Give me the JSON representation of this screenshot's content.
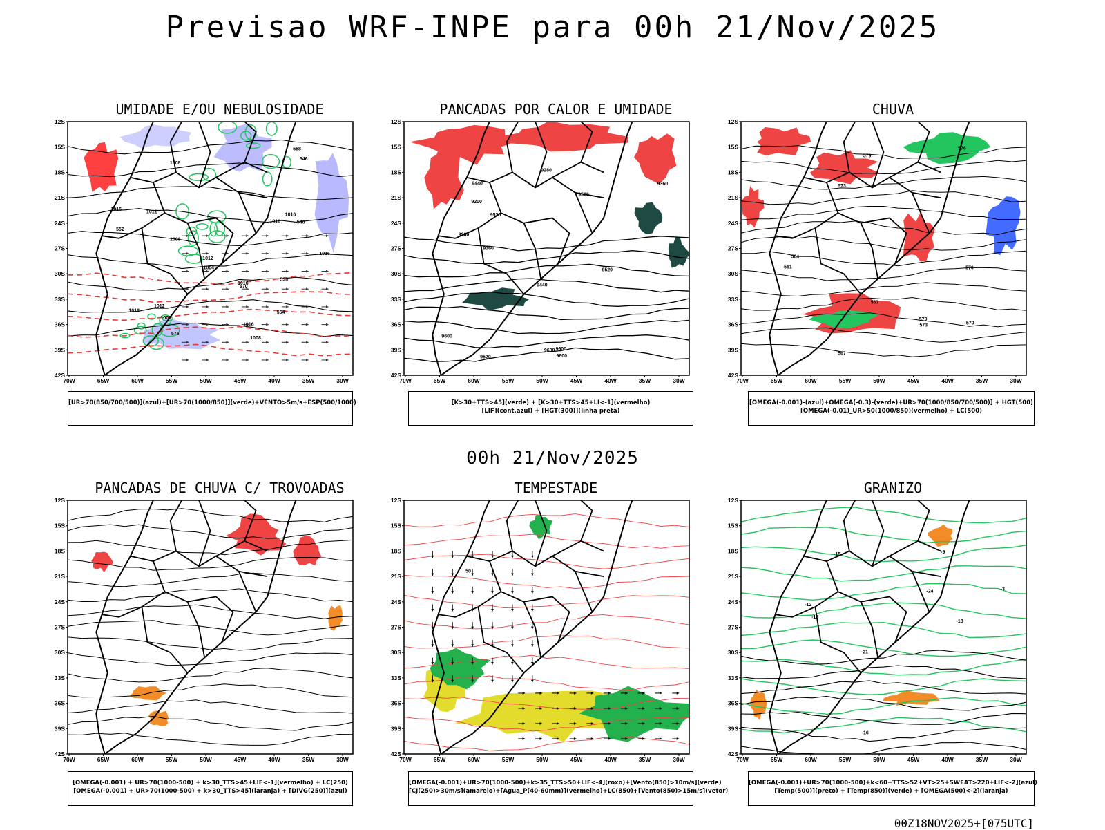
{
  "main_title": "Previsao WRF-INPE  para 00h 21/Nov/2025",
  "mid_title": "00h 21/Nov/2025",
  "footer": "00Z18NOV2025+[075UTC]",
  "lat_labels": [
    "12S",
    "15S",
    "18S",
    "21S",
    "24S",
    "27S",
    "30S",
    "33S",
    "36S",
    "39S",
    "42S"
  ],
  "lon_labels": [
    "70W",
    "65W",
    "60W",
    "55W",
    "50W",
    "45W",
    "40W",
    "35W",
    "30W"
  ],
  "panels": [
    {
      "title": "UMIDADE E/OU NEBULOSIDADE",
      "legend": [
        "[UR>70(850/700/500)](azul)+[UR>70(1000/850)](verde)+VENTO>5m/s+ESP(500/1000)"
      ],
      "labels": [
        "1008",
        "1008",
        "1012",
        "1012",
        "1016",
        "1016",
        "1016",
        "1008",
        "1004",
        "1008",
        "1012",
        "1016",
        "1012",
        "1016",
        "1016",
        "558",
        "552",
        "546",
        "534",
        "540",
        "564",
        "570",
        "576"
      ]
    },
    {
      "title": "PANCADAS POR CALOR E UMIDADE",
      "legend": [
        "[K>30+TTS>45](verde) + [K>30+TTS>45+LI<-1](vermelho)",
        "[LIF](cont.azul) + [HGT(300)](linha preta)"
      ],
      "labels": [
        "9600",
        "9600",
        "9600",
        "9600",
        "9520",
        "9520",
        "9520",
        "9520",
        "9440",
        "9440",
        "9360",
        "9360",
        "9280",
        "9280",
        "9200"
      ]
    },
    {
      "title": "CHUVA",
      "legend": [
        "[OMEGA(-0.001)-(azul)+OMEGA(-0.3)-(verde)+UR>70(1000/850/700/500)] + HGT(500)",
        "[OMEGA(-0.01)_UR>50(1000/850)(vermelho) + LC(500)"
      ],
      "labels": [
        "579",
        "579",
        "576",
        "576",
        "573",
        "570",
        "567",
        "564",
        "567",
        "561",
        "573"
      ]
    },
    {
      "title": "PANCADAS DE CHUVA C/ TROVOADAS",
      "legend": [
        "[OMEGA(-0.001) + UR>70(1000-500) + k>30_TTS>45+LIF<-1](vermelho) + LC(250)",
        "[OMEGA(-0.001) + UR>70(1000-500) + k>30_TTS>45](laranja) + [DIVG(250)](azul)"
      ],
      "labels": []
    },
    {
      "title": "TEMPESTADE",
      "legend": [
        "[OMEGA(-0.001)+UR>70(1000-500)+k>35_TTS>50+LIF<-4](roxo)+[Vento(850)>10m/s](verde)",
        "[CJ(250)>30m/s](amarelo)+[Agua_P(40-60mm)](vermelho)+LC(850)+[Vento(850)>15m/s](vetor)"
      ],
      "labels": [
        "50"
      ]
    },
    {
      "title": "GRANIZO",
      "legend": [
        "[OMEGA(-0.001)+UR>70(1000-500)+k<60+TTS>52+VT>25+SWEAT>220+LIF<-2](azul)",
        "[Temp(500)](preto) + [Temp(850)](verde) + [OMEGA(500)<-2](laranja)"
      ],
      "labels": [
        "-3",
        "-12",
        "-15",
        "-18",
        "-21",
        "-24",
        "-15",
        "-9",
        "-16"
      ]
    }
  ]
}
